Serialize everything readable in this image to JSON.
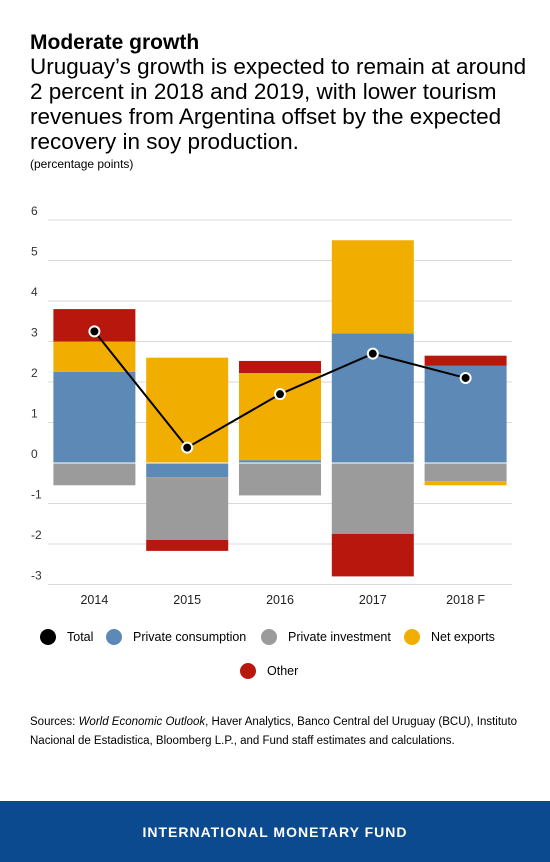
{
  "header": {
    "title": "Moderate growth",
    "subtitle": "Uruguay’s growth is expected to remain at around 2 percent in 2018 and 2019, with lower tourism revenues from Argentina offset by the expected recovery in soy production.",
    "units": "(percentage points)"
  },
  "legend": [
    {
      "label": "Total",
      "color": "#000000"
    },
    {
      "label": "Private consumption",
      "color": "#5d89b6"
    },
    {
      "label": "Private investment",
      "color": "#9b9b9b"
    },
    {
      "label": "Net exports",
      "color": "#f2ae00"
    },
    {
      "label": "Other",
      "color": "#b8170d"
    }
  ],
  "sources": {
    "prefix": "Sources: ",
    "italic": "World Economic Outlook",
    "rest": ", Haver Analytics, Banco Central del Uruguay (BCU), Instituto Nacional de Estadistica,  Bloomberg L.P., and Fund staff estimates and calculations."
  },
  "footer": {
    "text": "INTERNATIONAL MONETARY FUND"
  },
  "chart_data": {
    "type": "bar",
    "stacked": true,
    "categories": [
      "2014",
      "2015",
      "2016",
      "2017",
      "2018 F"
    ],
    "ylim": [
      -3,
      6
    ],
    "yticks": [
      6,
      5,
      4,
      3,
      2,
      1,
      0,
      -1,
      -2,
      -3
    ],
    "grid": true,
    "legend_position": "bottom",
    "series": [
      {
        "name": "Private consumption",
        "color": "#5d89b6",
        "values": [
          2.25,
          -0.35,
          0.07,
          3.2,
          2.4
        ]
      },
      {
        "name": "Private investment",
        "color": "#9b9b9b",
        "values": [
          -0.55,
          -1.55,
          -0.8,
          -1.75,
          -0.45
        ]
      },
      {
        "name": "Net exports",
        "color": "#f2ae00",
        "values": [
          0.75,
          2.6,
          2.15,
          2.3,
          -0.1
        ]
      },
      {
        "name": "Other",
        "color": "#b8170d",
        "values": [
          0.8,
          -0.27,
          0.3,
          -1.05,
          0.25
        ]
      }
    ],
    "line": {
      "name": "Total",
      "color": "#000000",
      "values": [
        3.25,
        0.38,
        1.7,
        2.7,
        2.1
      ]
    }
  }
}
